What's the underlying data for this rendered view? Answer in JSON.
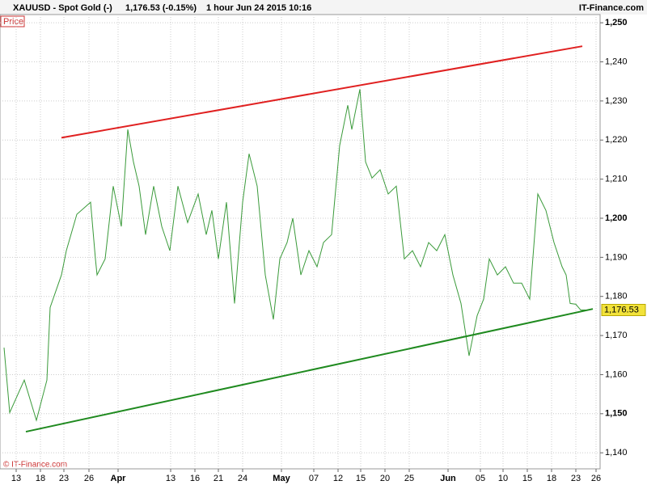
{
  "chart_data": {
    "type": "line",
    "title": "XAUUSD - Spot Gold (-)",
    "quote": "1,176.53 (-0.15%)",
    "period": "1 hour  Jun 24 2015 10:16",
    "brand": "IT-Finance.com",
    "series_label": "Price",
    "copyright": "© IT-Finance.com",
    "last_value_label": "1,176.53",
    "x": [
      -1.5,
      -0.8,
      1,
      2.5,
      3.8,
      4.2,
      5.6,
      6.2,
      7.5,
      9.2,
      9.8,
      10,
      11,
      12,
      13,
      13.8,
      14.5,
      15.2,
      16,
      17,
      18,
      19,
      20,
      21.2,
      22.5,
      23.5,
      24.2,
      25,
      26,
      27,
      28,
      28.8,
      29.8,
      30.8,
      31.8,
      32.6,
      33.5,
      34.2,
      35.2,
      36.2,
      37.2,
      38,
      39,
      40,
      41,
      41.5,
      42.5,
      43.2,
      44,
      45,
      46,
      47,
      48,
      49,
      50,
      51,
      52,
      53,
      54,
      55,
      56,
      57,
      57.8,
      58.5,
      59.5,
      60.5,
      61.5,
      62.5,
      63.5,
      64.5,
      65.5,
      66.5,
      67.5,
      68,
      68.5,
      69.2,
      69.8,
      70.4
    ],
    "series": [
      {
        "name": "XAUUSD",
        "color": "#3a9a3a",
        "values": [
          1166.9,
          1150.3,
          1158.6,
          1148.3,
          1158.6,
          1177.2,
          1185.5,
          1191.7,
          1201.0,
          1204.1,
          1189.6,
          1185.5,
          1189.6,
          1208.2,
          1197.9,
          1222.7,
          1214.4,
          1208.2,
          1195.8,
          1208.2,
          1197.9,
          1191.7,
          1208.2,
          1198.9,
          1206.2,
          1195.8,
          1202.0,
          1189.6,
          1204.1,
          1178.2,
          1204.1,
          1216.5,
          1208.2,
          1185.5,
          1174.1,
          1189.6,
          1193.8,
          1200.0,
          1185.5,
          1191.7,
          1187.6,
          1193.8,
          1195.8,
          1218.6,
          1228.9,
          1222.7,
          1233.0,
          1214.4,
          1210.3,
          1212.4,
          1206.2,
          1208.2,
          1189.6,
          1191.7,
          1187.6,
          1193.8,
          1191.7,
          1195.8,
          1185.5,
          1178.2,
          1164.8,
          1175.1,
          1179.3,
          1189.6,
          1185.5,
          1187.6,
          1183.4,
          1183.4,
          1179.3,
          1206.2,
          1202.0,
          1193.8,
          1187.6,
          1185.5,
          1178.2,
          1178.0,
          1176.53,
          1176.53
        ]
      }
    ],
    "trendlines": [
      {
        "color": "#e02020",
        "x": [
          5.6,
          70
        ],
        "values": [
          1220.6,
          1244.0
        ]
      },
      {
        "color": "#1f8a1f",
        "x": [
          1.2,
          71.3
        ],
        "values": [
          1145.4,
          1176.8
        ]
      }
    ],
    "xlim": [
      -2,
      72.2
    ],
    "ylim": [
      1135.9,
      1252.1
    ],
    "xticks": [
      {
        "value": 0,
        "label": "13"
      },
      {
        "value": 3,
        "label": "18"
      },
      {
        "value": 5.9,
        "label": "23"
      },
      {
        "value": 9,
        "label": "26"
      },
      {
        "value": 12.6,
        "label": "Apr"
      },
      {
        "value": 19.1,
        "label": "13"
      },
      {
        "value": 22.1,
        "label": "16"
      },
      {
        "value": 25,
        "label": "21"
      },
      {
        "value": 28,
        "label": "24"
      },
      {
        "value": 32.8,
        "label": "May"
      },
      {
        "value": 36.8,
        "label": "07"
      },
      {
        "value": 39.8,
        "label": "12"
      },
      {
        "value": 42.6,
        "label": "15"
      },
      {
        "value": 45.6,
        "label": "20"
      },
      {
        "value": 48.6,
        "label": "25"
      },
      {
        "value": 53.4,
        "label": "Jun"
      },
      {
        "value": 57.4,
        "label": "05"
      },
      {
        "value": 60.2,
        "label": "10"
      },
      {
        "value": 63.2,
        "label": "15"
      },
      {
        "value": 66.2,
        "label": "18"
      },
      {
        "value": 69.2,
        "label": "23"
      },
      {
        "value": 71.7,
        "label": "26"
      }
    ],
    "yticks": [
      {
        "value": 1140,
        "label": "1,140"
      },
      {
        "value": 1150,
        "label": "1,150"
      },
      {
        "value": 1160,
        "label": "1,160"
      },
      {
        "value": 1170,
        "label": "1,170"
      },
      {
        "value": 1180,
        "label": "1,180"
      },
      {
        "value": 1190,
        "label": "1,190"
      },
      {
        "value": 1200,
        "label": "1,200"
      },
      {
        "value": 1210,
        "label": "1,210"
      },
      {
        "value": 1220,
        "label": "1,220"
      },
      {
        "value": 1230,
        "label": "1,230"
      },
      {
        "value": 1240,
        "label": "1,240"
      },
      {
        "value": 1250,
        "label": "1,250"
      }
    ],
    "grid": true
  }
}
